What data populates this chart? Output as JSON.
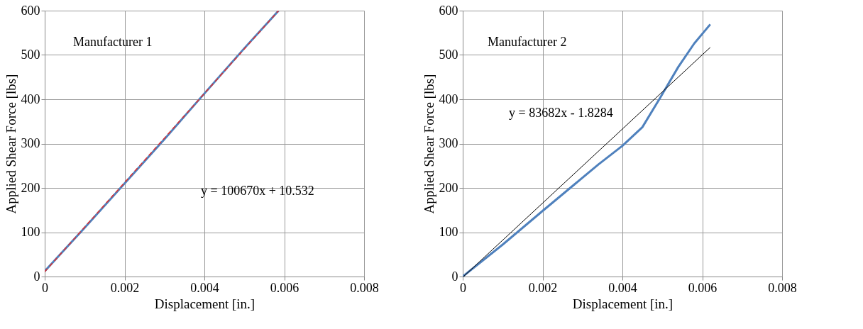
{
  "chart_data": [
    {
      "type": "line",
      "xlabel": "Displacement  [in.]",
      "ylabel": "Applied Shear Force [lbs]",
      "annotations": [
        "Manufacturer  1",
        "y = 100670x + 10.532"
      ],
      "xlim": [
        0,
        0.008
      ],
      "xticks": [
        0,
        0.002,
        0.004,
        0.006,
        0.008
      ],
      "ylim": [
        0,
        600
      ],
      "yticks": [
        0,
        100,
        200,
        300,
        400,
        500,
        600
      ],
      "grid": true,
      "series": [
        {
          "color": "#4f81bd",
          "x": [
            0,
            0.001,
            0.002,
            0.003,
            0.004,
            0.005,
            0.00586
          ],
          "values": [
            12,
            110,
            210,
            310,
            413,
            515,
            600
          ]
        },
        {
          "color": "#e03030",
          "line_style": "dashed",
          "x": [
            0,
            0.00586
          ],
          "values": [
            11,
            600
          ]
        }
      ]
    },
    {
      "type": "line",
      "xlabel": "Displacement  [in.]",
      "ylabel": "Applied Shear Force [lbs]",
      "annotations": [
        "Manufacturer  2",
        "y = 83682x - 1.8284"
      ],
      "xlim": [
        0,
        0.008
      ],
      "xticks": [
        0,
        0.002,
        0.004,
        0.006,
        0.008
      ],
      "ylim": [
        0,
        600
      ],
      "yticks": [
        0,
        100,
        200,
        300,
        400,
        500,
        600
      ],
      "grid": true,
      "series": [
        {
          "color": "#4f81bd",
          "x": [
            0,
            0.001,
            0.002,
            0.0028,
            0.0034,
            0.004,
            0.0045,
            0.00495,
            0.0054,
            0.0058,
            0.0062
          ],
          "values": [
            0,
            72,
            148,
            208,
            253,
            295,
            337,
            404,
            473,
            526,
            569
          ]
        },
        {
          "color": "#000000",
          "x": [
            2e-05,
            0.0062
          ],
          "values": [
            0,
            517
          ]
        }
      ]
    }
  ]
}
